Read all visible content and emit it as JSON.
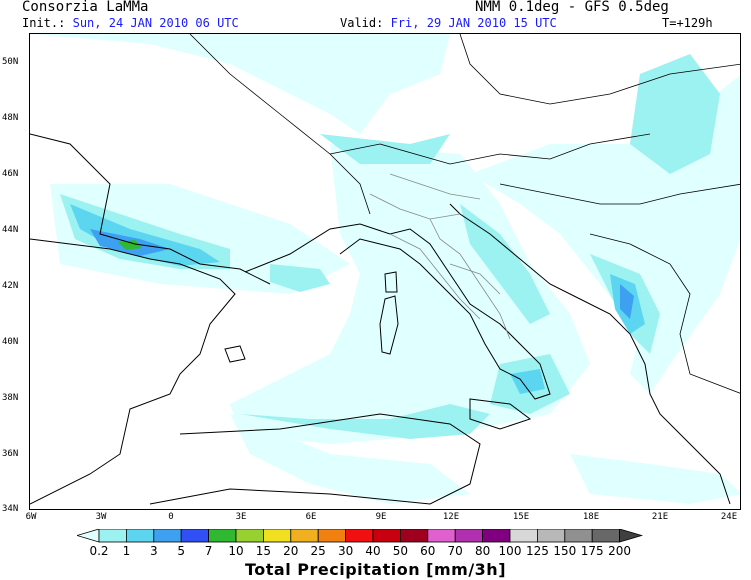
{
  "header": {
    "org": "Consorzia LaMMa",
    "model": "NMM 0.1deg - GFS 0.5deg",
    "init_label": "Init.:",
    "init_value": "Sun, 24 JAN 2010  06 UTC",
    "valid_label": "Valid:",
    "valid_value": "Fri, 29 JAN 2010  15 UTC",
    "lead": "T=+129h"
  },
  "map": {
    "lat_labels": [
      "50N",
      "48N",
      "46N",
      "44N",
      "42N",
      "40N",
      "38N",
      "36N",
      "34N"
    ],
    "lon_labels": [
      "6W",
      "3W",
      "0",
      "3E",
      "6E",
      "9E",
      "12E",
      "15E",
      "18E",
      "21E",
      "24E"
    ],
    "lon_range": [
      -6,
      24
    ],
    "lat_range": [
      34,
      51
    ]
  },
  "colorbar": {
    "title": "Total Precipitation [mm/3h]",
    "levels": [
      "0.2",
      "1",
      "3",
      "5",
      "7",
      "10",
      "15",
      "20",
      "25",
      "30",
      "40",
      "50",
      "60",
      "70",
      "80",
      "100",
      "125",
      "150",
      "175",
      "200"
    ],
    "colors": [
      "#e0ffff",
      "#9cf1f1",
      "#5cd6f0",
      "#3ea0f0",
      "#3050f5",
      "#30b830",
      "#98d030",
      "#f0e020",
      "#f0b020",
      "#f08010",
      "#f01010",
      "#c80010",
      "#a00020",
      "#e060d0",
      "#b030b0",
      "#800080",
      "#d8d8d8",
      "#b8b8b8",
      "#909090",
      "#686868",
      "#404040"
    ]
  }
}
